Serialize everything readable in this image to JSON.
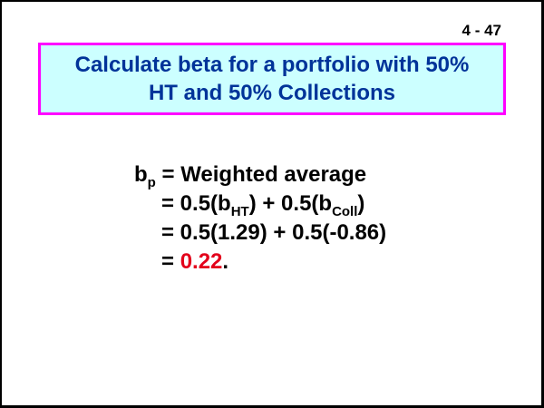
{
  "slide_number": "4 - 47",
  "title": {
    "line1": "Calculate beta for a portfolio with 50%",
    "line2": "HT and 50% Collections"
  },
  "formula": {
    "line1": {
      "var": "b",
      "var_sub": "p",
      "rest": " = Weighted average"
    },
    "line2": {
      "a": "= 0.5(b",
      "sub1": "HT",
      "b": ") + 0.5(b",
      "sub2": "Coll",
      "c": ")"
    },
    "line3": {
      "text": "= 0.5(1.29) + 0.5(-0.86)"
    },
    "line4": {
      "prefix": "= ",
      "result": "0.22",
      "suffix": "."
    }
  },
  "colors": {
    "title_text": "#003399",
    "title_background": "#ccffff",
    "title_border": "#ff00ff",
    "result_highlight": "#e3001b"
  }
}
